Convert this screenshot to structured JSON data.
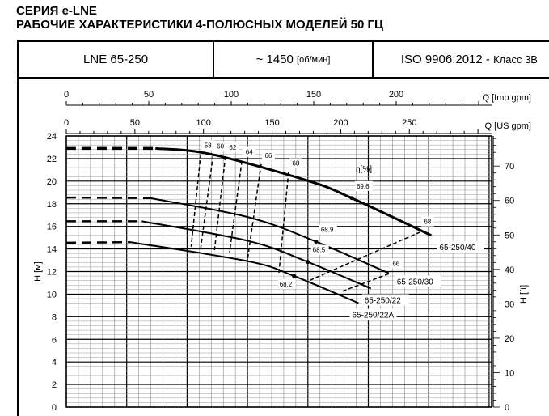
{
  "header": {
    "series": "СЕРИЯ e-LNE",
    "title": "РАБОЧИЕ ХАРАКТЕРИСТИКИ 4-ПОЛЮСНЫХ МОДЕЛЕЙ 50 ГЦ"
  },
  "info": {
    "model": "LNE 65-250",
    "speed": "~ 1450",
    "speed_unit": "[об/мин]",
    "standard": "ISO 9906:2012 -",
    "class": "Класс 3В"
  },
  "chart_data": {
    "type": "line",
    "x_axes": [
      {
        "label": "Q [Imp gpm]",
        "ticks": [
          0,
          50,
          100,
          150,
          200
        ]
      },
      {
        "label": "Q [US gpm]",
        "ticks": [
          0,
          50,
          100,
          150,
          200,
          250
        ]
      }
    ],
    "xlim_us_gpm": [
      0,
      308
    ],
    "y_left": {
      "label": "H [м]",
      "ticks": [
        0,
        2,
        4,
        6,
        8,
        10,
        12,
        14,
        16,
        18,
        20,
        22,
        24
      ],
      "ylim": [
        0,
        24
      ]
    },
    "y_right": {
      "label": "H [ft]",
      "ticks": [
        0,
        10,
        20,
        30,
        40,
        50,
        60,
        70
      ]
    },
    "efficiency_label": "η[%]",
    "grid": true,
    "series": [
      {
        "name": "65-250/40",
        "dashed_to": 65,
        "points": [
          [
            0,
            22.9
          ],
          [
            65,
            22.9
          ],
          [
            105,
            22.4
          ],
          [
            177,
            20.0
          ],
          [
            208,
            18.5
          ],
          [
            266,
            15.2
          ]
        ]
      },
      {
        "name": "65-250/30",
        "dashed_to": 61,
        "points": [
          [
            0,
            18.55
          ],
          [
            61,
            18.5
          ],
          [
            133,
            16.8
          ],
          [
            182,
            14.65
          ],
          [
            235,
            11.85
          ]
        ]
      },
      {
        "name": "65-250/22",
        "dashed_to": 55,
        "points": [
          [
            0,
            16.45
          ],
          [
            55,
            16.45
          ],
          [
            133,
            14.7
          ],
          [
            176,
            12.85
          ],
          [
            222,
            10.5
          ]
        ]
      },
      {
        "name": "65-250/22A",
        "dashed_to": 47,
        "points": [
          [
            0,
            14.55
          ],
          [
            47,
            14.6
          ],
          [
            133,
            12.9
          ],
          [
            166,
            11.6
          ],
          [
            213,
            9.2
          ]
        ]
      }
    ],
    "efficiency_lines": [
      {
        "label": "58",
        "points": [
          [
            98,
            22.4
          ],
          [
            91,
            14.2
          ]
        ]
      },
      {
        "label": "60",
        "points": [
          [
            107,
            22.3
          ],
          [
            98,
            14.1
          ]
        ]
      },
      {
        "label": "62",
        "points": [
          [
            116,
            22.2
          ],
          [
            108,
            13.9
          ]
        ]
      },
      {
        "label": "64",
        "points": [
          [
            128,
            21.8
          ],
          [
            119,
            13.7
          ]
        ]
      },
      {
        "label": "66",
        "points": [
          [
            142,
            21.5
          ],
          [
            132,
            13.0
          ]
        ]
      },
      {
        "label": "68",
        "points": [
          [
            162,
            20.8
          ],
          [
            155,
            11.9
          ]
        ]
      },
      {
        "label": "68",
        "points": [
          [
            258,
            15.5
          ],
          [
            177,
            11.2
          ]
        ]
      },
      {
        "label": "66",
        "points": [
          [
            235,
            11.8
          ],
          [
            200,
            10.2
          ]
        ]
      }
    ],
    "best_efficiency_points": [
      {
        "label": "69.6",
        "x": 208,
        "y": 18.5
      },
      {
        "label": "68.9",
        "x": 182,
        "y": 14.65
      },
      {
        "label": "68.5",
        "x": 176,
        "y": 12.85
      },
      {
        "label": "68.2",
        "x": 166,
        "y": 11.6
      }
    ]
  }
}
